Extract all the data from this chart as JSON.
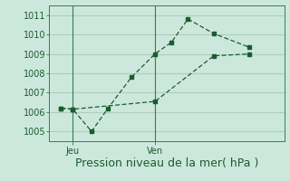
{
  "title": "Pression niveau de la mer( hPa )",
  "bg_color": "#cce8dc",
  "grid_color": "#b0ccbe",
  "line_color": "#1a5c30",
  "ylim": [
    1004.5,
    1011.5
  ],
  "yticks": [
    1005,
    1006,
    1007,
    1008,
    1009,
    1010,
    1011
  ],
  "xlim": [
    0,
    10
  ],
  "vlines_x": [
    1.0,
    4.5
  ],
  "vline_labels": [
    "Jeu",
    "Ven"
  ],
  "line1_x": [
    0.5,
    1.0,
    1.8,
    2.5,
    3.5,
    4.5,
    5.2,
    5.9,
    7.0,
    8.5
  ],
  "line1_y": [
    1006.2,
    1006.15,
    1005.0,
    1006.2,
    1007.8,
    1009.0,
    1009.6,
    1010.8,
    1010.05,
    1009.35
  ],
  "line2_x": [
    0.5,
    1.0,
    4.5,
    7.0,
    8.5
  ],
  "line2_y": [
    1006.2,
    1006.15,
    1006.55,
    1008.9,
    1009.0
  ],
  "tick_fontsize": 7,
  "xlabel_fontsize": 9,
  "xlabel_color": "#1a5c30",
  "tick_color": "#1a5c30"
}
